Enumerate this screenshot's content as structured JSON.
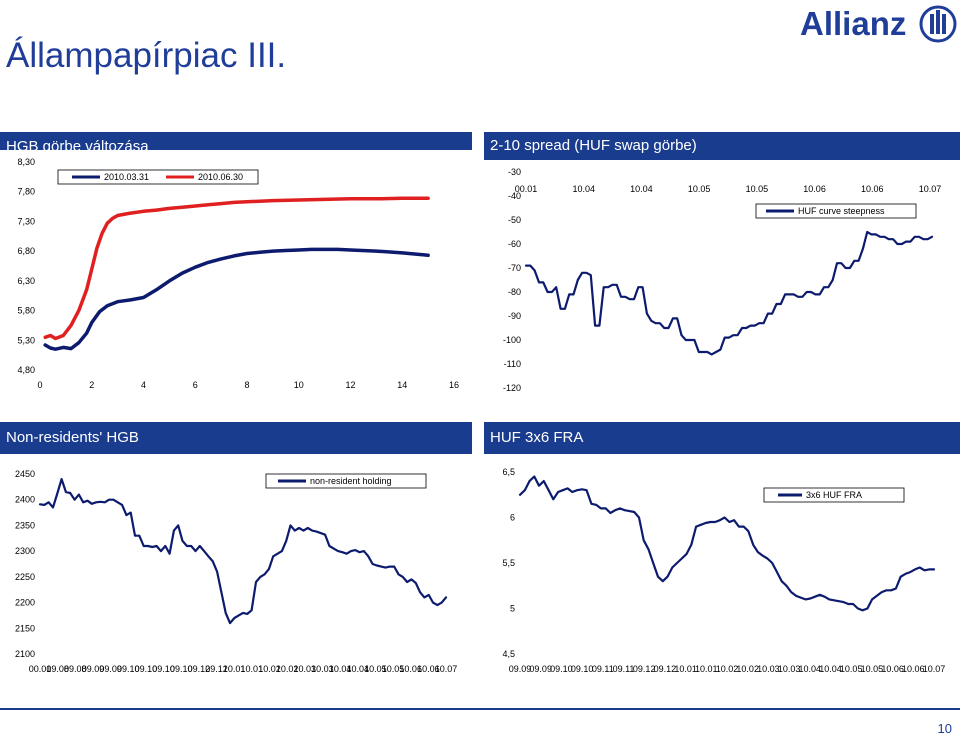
{
  "page": {
    "title": "Állampapírpiac III.",
    "logo_text": "Allianz",
    "page_number": "10",
    "colors": {
      "brand": "#1a3c8f",
      "series_blue": "#0d1b6e",
      "series_red": "#e02020"
    }
  },
  "panels": {
    "hgb_curve": {
      "title": "HGB görbe változása"
    },
    "spread": {
      "title": "2-10 spread (HUF swap görbe)"
    },
    "nonres": {
      "title": "Non-residents' HGB"
    },
    "fra": {
      "title": "HUF 3x6 FRA"
    }
  },
  "chart_data": [
    {
      "id": "hgb_curve",
      "type": "line",
      "x_ticks": [
        "0",
        "2",
        "4",
        "6",
        "8",
        "10",
        "12",
        "14",
        "16"
      ],
      "y_ticks": [
        "4,80",
        "5,30",
        "5,80",
        "6,30",
        "6,80",
        "7,30",
        "7,80",
        "8,30"
      ],
      "xlim": [
        0,
        16
      ],
      "ylim": [
        4.8,
        8.3
      ],
      "series": [
        {
          "name": "2010.03.31",
          "color": "#0d1b6e",
          "x": [
            0.2,
            0.4,
            0.6,
            0.9,
            1.2,
            1.5,
            1.8,
            2.0,
            2.3,
            2.6,
            3.0,
            3.5,
            4.0,
            4.5,
            5.0,
            5.5,
            6.0,
            6.5,
            7.0,
            7.5,
            8.0,
            8.5,
            9.0,
            9.5,
            10.0,
            10.5,
            11.0,
            11.5,
            12.0,
            13.0,
            14.0,
            15.0
          ],
          "y": [
            5.22,
            5.17,
            5.15,
            5.18,
            5.16,
            5.26,
            5.42,
            5.6,
            5.78,
            5.88,
            5.95,
            5.98,
            6.02,
            6.15,
            6.3,
            6.43,
            6.53,
            6.61,
            6.67,
            6.72,
            6.76,
            6.78,
            6.8,
            6.81,
            6.82,
            6.83,
            6.83,
            6.83,
            6.82,
            6.8,
            6.77,
            6.73
          ]
        },
        {
          "name": "2010.06.30",
          "color": "#e02020",
          "x": [
            0.2,
            0.4,
            0.6,
            0.9,
            1.2,
            1.5,
            1.8,
            2.0,
            2.2,
            2.4,
            2.6,
            2.8,
            3.0,
            3.5,
            4.0,
            4.5,
            5.0,
            5.5,
            6.0,
            6.5,
            7.0,
            7.5,
            8.0,
            9.0,
            10.0,
            11.0,
            12.0,
            13.0,
            14.0,
            15.0
          ],
          "y": [
            5.35,
            5.38,
            5.33,
            5.38,
            5.55,
            5.8,
            6.15,
            6.5,
            6.85,
            7.1,
            7.27,
            7.35,
            7.4,
            7.44,
            7.47,
            7.49,
            7.52,
            7.54,
            7.56,
            7.58,
            7.6,
            7.62,
            7.63,
            7.65,
            7.66,
            7.67,
            7.68,
            7.68,
            7.69,
            7.69
          ]
        }
      ]
    },
    {
      "id": "spread",
      "type": "line",
      "x_ticks": [
        "00.01",
        "10.04",
        "10.04",
        "10.05",
        "10.05",
        "10.06",
        "10.06",
        "10.07"
      ],
      "y_ticks": [
        "-120",
        "-110",
        "-100",
        "-90",
        "-80",
        "-70",
        "-60",
        "-50",
        "-40",
        "-30"
      ],
      "ylim": [
        -120,
        -30
      ],
      "series": [
        {
          "name": "HUF curve steepness",
          "color": "#0d1b6e",
          "values": [
            -69,
            -69,
            -71,
            -76,
            -76,
            -80,
            -80,
            -78,
            -87,
            -87,
            -81,
            -81,
            -75,
            -72,
            -72,
            -73,
            -94,
            -94,
            -78,
            -78,
            -77,
            -77,
            -82,
            -82,
            -83,
            -83,
            -78,
            -78,
            -89,
            -92,
            -93,
            -93,
            -95,
            -95,
            -91,
            -91,
            -98,
            -100,
            -100,
            -100,
            -105,
            -105,
            -105,
            -106,
            -105,
            -104,
            -99,
            -99,
            -98,
            -98,
            -95,
            -95,
            -94,
            -94,
            -93,
            -93,
            -89,
            -89,
            -85,
            -85,
            -81,
            -81,
            -81,
            -82,
            -82,
            -80,
            -80,
            -81,
            -81,
            -78,
            -78,
            -75,
            -68,
            -68,
            -70,
            -70,
            -67,
            -67,
            -62,
            -55,
            -56,
            -56,
            -57,
            -57,
            -58,
            -58,
            -60,
            -60,
            -59,
            -59,
            -57,
            -57,
            -58,
            -58,
            -57
          ]
        }
      ]
    },
    {
      "id": "nonres",
      "type": "line",
      "x_ticks": [
        "00.01",
        "09.08",
        "09.08",
        "09.09",
        "09.09",
        "09.10",
        "09.10",
        "09.10",
        "09.10",
        "09.12",
        "09.12",
        "10.01",
        "10.01",
        "10.02",
        "10.02",
        "10.03",
        "10.03",
        "10.04",
        "10.04",
        "10.05",
        "10.05",
        "10.06",
        "10.06",
        "10.07"
      ],
      "y_ticks": [
        "2100",
        "2150",
        "2200",
        "2250",
        "2300",
        "2350",
        "2400",
        "2450"
      ],
      "ylim": [
        2100,
        2450
      ],
      "series": [
        {
          "name": "non-resident holding",
          "color": "#0d1b6e",
          "values": [
            2391,
            2390,
            2395,
            2385,
            2412,
            2440,
            2415,
            2413,
            2400,
            2410,
            2395,
            2398,
            2392,
            2395,
            2396,
            2395,
            2400,
            2400,
            2395,
            2390,
            2370,
            2375,
            2330,
            2330,
            2310,
            2310,
            2308,
            2310,
            2300,
            2310,
            2295,
            2340,
            2350,
            2320,
            2310,
            2310,
            2300,
            2310,
            2300,
            2290,
            2280,
            2260,
            2220,
            2180,
            2160,
            2170,
            2175,
            2180,
            2178,
            2185,
            2240,
            2250,
            2255,
            2265,
            2290,
            2295,
            2300,
            2320,
            2350,
            2340,
            2345,
            2340,
            2345,
            2340,
            2338,
            2335,
            2332,
            2310,
            2305,
            2300,
            2298,
            2295,
            2300,
            2302,
            2298,
            2300,
            2290,
            2275,
            2272,
            2270,
            2268,
            2270,
            2270,
            2255,
            2250,
            2240,
            2245,
            2238,
            2220,
            2210,
            2215,
            2200,
            2195,
            2200,
            2210
          ]
        }
      ]
    },
    {
      "id": "fra",
      "type": "line",
      "x_ticks": [
        "09.09",
        "09.09",
        "09.10",
        "09.10",
        "09.11",
        "09.11",
        "09.12",
        "09.12",
        "10.01",
        "10.01",
        "10.02",
        "10.02",
        "10.03",
        "10.03",
        "10.04",
        "10.04",
        "10.05",
        "10.05",
        "10.06",
        "10.06",
        "10.07"
      ],
      "y_ticks": [
        "4,5",
        "5",
        "5,5",
        "6",
        "6,5"
      ],
      "ylim": [
        4.5,
        6.5
      ],
      "series": [
        {
          "name": "3x6 HUF FRA",
          "color": "#0d1b6e",
          "values": [
            6.25,
            6.3,
            6.4,
            6.45,
            6.35,
            6.4,
            6.3,
            6.2,
            6.28,
            6.3,
            6.32,
            6.28,
            6.3,
            6.31,
            6.3,
            6.15,
            6.14,
            6.1,
            6.1,
            6.05,
            6.08,
            6.1,
            6.08,
            6.07,
            6.06,
            6.0,
            5.75,
            5.65,
            5.5,
            5.35,
            5.3,
            5.35,
            5.45,
            5.5,
            5.55,
            5.6,
            5.7,
            5.9,
            5.92,
            5.94,
            5.95,
            5.95,
            5.97,
            6.0,
            5.95,
            5.97,
            5.9,
            5.9,
            5.85,
            5.7,
            5.62,
            5.58,
            5.55,
            5.5,
            5.4,
            5.3,
            5.25,
            5.18,
            5.14,
            5.12,
            5.1,
            5.11,
            5.13,
            5.15,
            5.13,
            5.1,
            5.09,
            5.08,
            5.07,
            5.05,
            5.05,
            5.0,
            4.98,
            5.0,
            5.1,
            5.14,
            5.18,
            5.2,
            5.2,
            5.22,
            5.35,
            5.38,
            5.4,
            5.43,
            5.45,
            5.42,
            5.43,
            5.43
          ]
        }
      ]
    }
  ]
}
